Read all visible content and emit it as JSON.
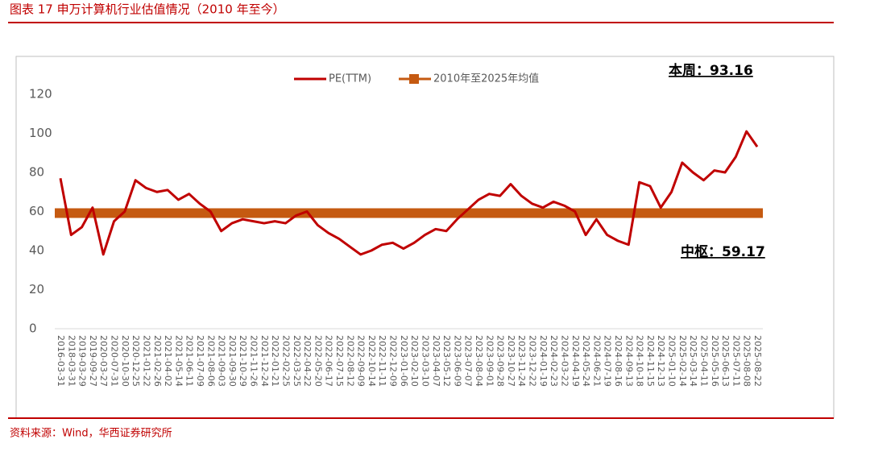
{
  "header": {
    "title": "图表 17 申万计算机行业估值情况（2010 年至今）"
  },
  "chart_data": {
    "type": "line",
    "categories": [
      "2016-03-31",
      "2018-03-31",
      "2019-03-29",
      "2019-09-27",
      "2020-03-27",
      "2020-07-31",
      "2020-10-30",
      "2020-12-25",
      "2021-01-22",
      "2021-02-26",
      "2021-04-02",
      "2021-05-14",
      "2021-06-11",
      "2021-07-09",
      "2021-08-06",
      "2021-09-03",
      "2021-09-30",
      "2021-10-29",
      "2021-11-26",
      "2021-12-24",
      "2022-01-21",
      "2022-02-25",
      "2022-03-25",
      "2022-04-22",
      "2022-05-20",
      "2022-06-17",
      "2022-07-15",
      "2022-08-12",
      "2022-09-09",
      "2022-10-14",
      "2022-11-11",
      "2022-12-09",
      "2023-01-06",
      "2023-02-10",
      "2023-03-10",
      "2023-04-07",
      "2023-05-12",
      "2023-06-09",
      "2023-07-07",
      "2023-08-04",
      "2023-09-01",
      "2023-09-28",
      "2023-10-27",
      "2023-11-24",
      "2023-12-22",
      "2024-01-19",
      "2024-02-23",
      "2024-03-22",
      "2024-04-19",
      "2024-05-24",
      "2024-06-21",
      "2024-07-19",
      "2024-08-16",
      "2024-09-13",
      "2024-10-18",
      "2024-11-15",
      "2024-12-13",
      "2025-01-10",
      "2025-02-14",
      "2025-03-14",
      "2025-04-11",
      "2025-05-16",
      "2025-06-13",
      "2025-07-11",
      "2025-08-08",
      "2025-08-22"
    ],
    "series": [
      {
        "name": "PE(TTM)",
        "color": "#c00000",
        "values": [
          77,
          48,
          52,
          62,
          38,
          55,
          60,
          76,
          72,
          70,
          71,
          66,
          69,
          64,
          60,
          50,
          54,
          56,
          55,
          54,
          55,
          54,
          58,
          60,
          53,
          49,
          46,
          42,
          38,
          40,
          43,
          44,
          41,
          44,
          48,
          51,
          50,
          56,
          61,
          66,
          69,
          68,
          74,
          68,
          64,
          62,
          65,
          63,
          60,
          48,
          56,
          48,
          45,
          43,
          75,
          73,
          62,
          70,
          85,
          80,
          76,
          81,
          80,
          88,
          101,
          93.16
        ]
      }
    ],
    "mean": {
      "name": "2010年至2025年均值",
      "color": "#c55a11",
      "value": 59.17
    },
    "annotations": [
      "本周：93.16",
      "中枢：59.17"
    ],
    "ylim": [
      0,
      120
    ],
    "yticks": [
      0,
      20,
      40,
      60,
      80,
      100,
      120
    ]
  },
  "footer": {
    "source": "资料来源：Wind，华西证券研究所"
  }
}
